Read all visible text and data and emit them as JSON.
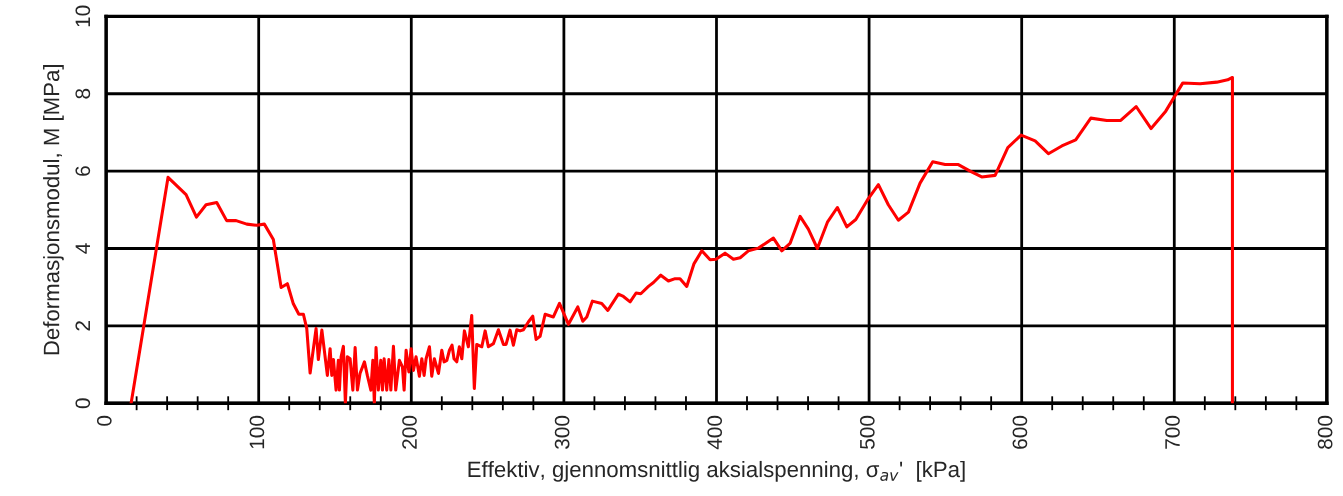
{
  "chart_data": {
    "type": "line",
    "xlabel": "Effektiv, gjennomsnittlig aksialspenning, σ$_{av}$'  [kPa]",
    "ylabel": "Deformasjonsmodul, M [MPa]",
    "xlim": [
      0,
      800
    ],
    "ylim": [
      0,
      10
    ],
    "xticks": [
      0,
      {
        "value": 20,
        "label": null
      },
      {
        "value": 40,
        "label": null
      },
      {
        "value": 60,
        "label": null
      },
      {
        "value": 80,
        "label": null
      },
      100,
      {
        "value": 120,
        "label": null
      },
      {
        "value": 140,
        "label": null
      },
      {
        "value": 160,
        "label": null
      },
      {
        "value": 180,
        "label": null
      },
      200,
      {
        "value": 220,
        "label": null
      },
      {
        "value": 240,
        "label": null
      },
      {
        "value": 260,
        "label": null
      },
      {
        "value": 280,
        "label": null
      },
      300,
      {
        "value": 320,
        "label": null
      },
      {
        "value": 340,
        "label": null
      },
      {
        "value": 360,
        "label": null
      },
      {
        "value": 380,
        "label": null
      },
      400,
      {
        "value": 420,
        "label": null
      },
      {
        "value": 440,
        "label": null
      },
      {
        "value": 460,
        "label": null
      },
      {
        "value": 480,
        "label": null
      },
      500,
      {
        "value": 520,
        "label": null
      },
      {
        "value": 540,
        "label": null
      },
      {
        "value": 560,
        "label": null
      },
      {
        "value": 580,
        "label": null
      },
      600,
      {
        "value": 620,
        "label": null
      },
      {
        "value": 640,
        "label": null
      },
      {
        "value": 660,
        "label": null
      },
      {
        "value": 680,
        "label": null
      },
      700,
      {
        "value": 720,
        "label": null
      },
      {
        "value": 740,
        "label": null
      },
      {
        "value": 760,
        "label": null
      },
      {
        "value": 780,
        "label": null
      },
      800
    ],
    "yticks": [
      0,
      2,
      4,
      6,
      8,
      10
    ],
    "grid": true,
    "marker": "none",
    "line_style": "solid",
    "series": [
      {
        "color": "#ff0000",
        "x": [
          16.4,
          40.6,
          52.4,
          59.2,
          65.5,
          72.5,
          79.0,
          85.2,
          92.2,
          98.7,
          103.7,
          109.6,
          114.7,
          118.8,
          122.7,
          126.3,
          129.3,
          131.5,
          133.7,
          137.6,
          139.1,
          141.4,
          145.0,
          146.8,
          147.9,
          149.0,
          150.7,
          152.2,
          152.9,
          154.0,
          155.5,
          156.8,
          158.1,
          159.9,
          161.7,
          163.2,
          164.7,
          166.4,
          169.3,
          171.2,
          173.5,
          174.8,
          175.8,
          176.9,
          178.4,
          180.0,
          181.1,
          182.2,
          183.9,
          185.3,
          186.6,
          188.3,
          189.8,
          192.2,
          194.2,
          195.3,
          196.6,
          198.4,
          199.9,
          201.4,
          203.1,
          205.3,
          206.9,
          208.4,
          209.7,
          211.9,
          213.4,
          215.1,
          217.8,
          220.0,
          221.5,
          223.3,
          225.0,
          226.7,
          228.0,
          229.8,
          231.5,
          233.1,
          234.8,
          237.4,
          239.6,
          241.3,
          242.9,
          246.2,
          248.4,
          250.5,
          253.8,
          257.1,
          260.4,
          262.1,
          264.7,
          266.9,
          269.1,
          271.3,
          273.5,
          276.7,
          279.6,
          281.8,
          284.4,
          287.7,
          293.1,
          297.1,
          303.0,
          309.1,
          312.4,
          315.0,
          318.7,
          324.8,
          328.8,
          335.7,
          339.0,
          343.4,
          347.3,
          350.4,
          355.4,
          358.7,
          363.5,
          368.5,
          372.9,
          376.1,
          380.5,
          385.3,
          390.4,
          395.8,
          399.7,
          405.6,
          411.1,
          415.5,
          420.9,
          427.5,
          432.5,
          437.3,
          442.8,
          448.2,
          454.8,
          460.2,
          466.1,
          472.7,
          479.2,
          485.4,
          491.3,
          499.5,
          506.1,
          512.6,
          519.2,
          525.8,
          533.4,
          541.7,
          549.8,
          558.5,
          566.2,
          573.8,
          582.6,
          590.9,
          599.6,
          608.8,
          617.5,
          626.3,
          635.4,
          645.3,
          655.8,
          664.9,
          675.0,
          684.8,
          694.4,
          705.6,
          716.9,
          727.8,
          735.0,
          738.1,
          738.1
        ],
        "values": [
          0,
          5.84,
          5.39,
          4.81,
          5.13,
          5.19,
          4.72,
          4.72,
          4.63,
          4.6,
          4.63,
          4.23,
          2.99,
          3.09,
          2.57,
          2.3,
          2.3,
          1.93,
          0.78,
          1.93,
          1.13,
          1.89,
          0.72,
          1.41,
          0.72,
          1.13,
          0.34,
          1.11,
          0.34,
          1.2,
          1.47,
          0,
          1.2,
          1.15,
          0.34,
          1.44,
          0.34,
          0.77,
          1.07,
          0.72,
          0.34,
          1.11,
          0,
          1.44,
          0.34,
          1.11,
          0.34,
          1.15,
          0.34,
          1.13,
          0.34,
          1.47,
          0.34,
          1.11,
          0.94,
          0.34,
          1.37,
          0.81,
          1.41,
          0.85,
          1.2,
          0.7,
          1.15,
          0.72,
          1.15,
          1.46,
          0.7,
          1.15,
          0.77,
          1.37,
          1.07,
          1.11,
          1.37,
          1.5,
          1.15,
          1.07,
          1.46,
          1.15,
          1.87,
          1.46,
          2.27,
          0.38,
          1.52,
          1.46,
          1.87,
          1.46,
          1.54,
          1.9,
          1.52,
          1.52,
          1.89,
          1.5,
          1.9,
          1.87,
          1.9,
          2.1,
          2.25,
          1.65,
          1.73,
          2.3,
          2.23,
          2.58,
          2.04,
          2.49,
          2.12,
          2.23,
          2.64,
          2.58,
          2.4,
          2.82,
          2.76,
          2.62,
          2.85,
          2.83,
          3.02,
          3.12,
          3.31,
          3.16,
          3.22,
          3.22,
          3.02,
          3.61,
          3.94,
          3.71,
          3.72,
          3.88,
          3.72,
          3.76,
          3.94,
          4.01,
          4.14,
          4.27,
          3.94,
          4.13,
          4.83,
          4.5,
          4.0,
          4.68,
          5.06,
          4.56,
          4.75,
          5.29,
          5.65,
          5.13,
          4.73,
          4.94,
          5.69,
          6.24,
          6.17,
          6.17,
          6.0,
          5.85,
          5.89,
          6.61,
          6.93,
          6.78,
          6.45,
          6.65,
          6.81,
          7.37,
          7.31,
          7.31,
          7.67,
          7.1,
          7.55,
          8.28,
          8.26,
          8.3,
          8.36,
          8.42,
          0
        ]
      }
    ]
  }
}
